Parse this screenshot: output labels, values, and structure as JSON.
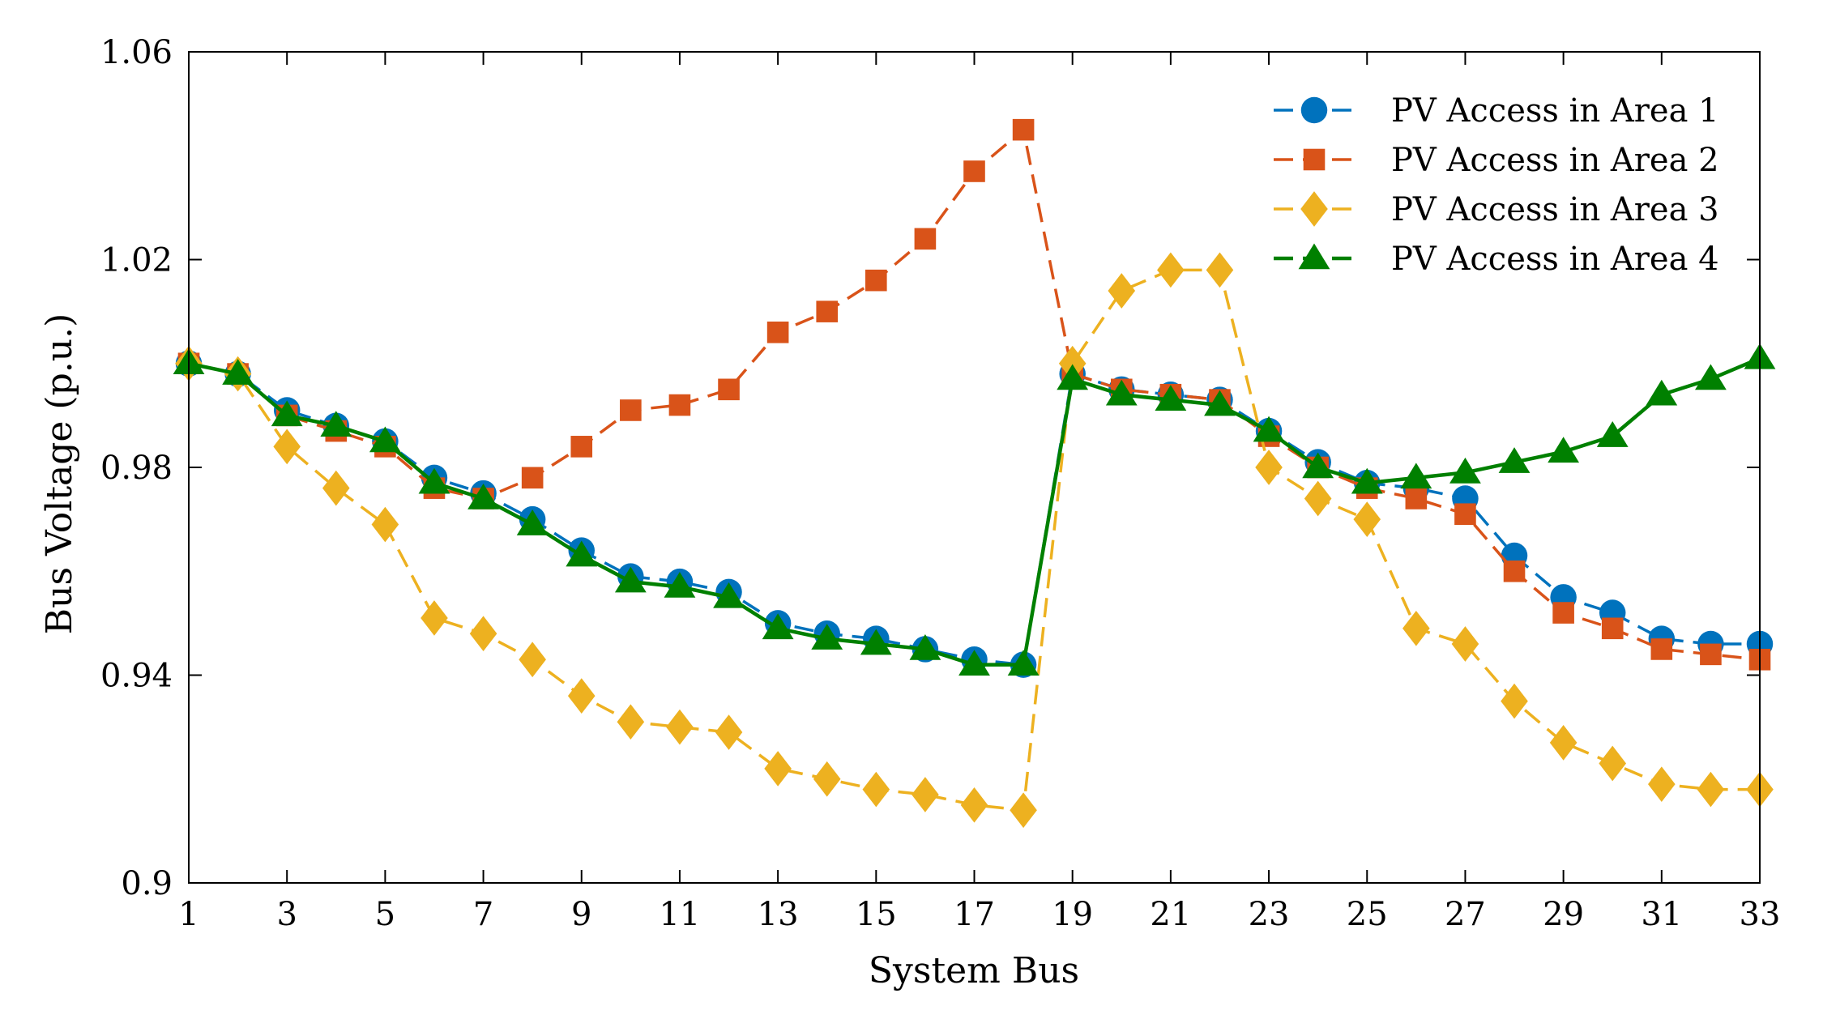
{
  "chart_data": {
    "type": "line",
    "title": "",
    "xlabel": "System Bus",
    "ylabel": "Bus Voltage (p.u.)",
    "xlim": [
      1,
      33
    ],
    "ylim": [
      0.9,
      1.06
    ],
    "x_ticks": [
      1,
      3,
      5,
      7,
      9,
      11,
      13,
      15,
      17,
      19,
      21,
      23,
      25,
      27,
      29,
      31,
      33
    ],
    "y_ticks": [
      0.9,
      0.94,
      0.98,
      1.02,
      1.06
    ],
    "y_tick_labels": [
      "0.9",
      "0.94",
      "0.98",
      "1.02",
      "1.06"
    ],
    "grid": false,
    "legend_position": "top-right",
    "x": [
      1,
      2,
      3,
      4,
      5,
      6,
      7,
      8,
      9,
      10,
      11,
      12,
      13,
      14,
      15,
      16,
      17,
      18,
      19,
      20,
      21,
      22,
      23,
      24,
      25,
      26,
      27,
      28,
      29,
      30,
      31,
      32,
      33
    ],
    "series": [
      {
        "name": "PV Access in Area 1",
        "color": "#0072BD",
        "marker": "circle",
        "line_style": "dashed",
        "values": [
          1.0,
          0.998,
          0.991,
          0.988,
          0.985,
          0.978,
          0.975,
          0.97,
          0.964,
          0.959,
          0.958,
          0.956,
          0.95,
          0.948,
          0.947,
          0.945,
          0.943,
          0.942,
          0.998,
          0.995,
          0.994,
          0.993,
          0.987,
          0.981,
          0.977,
          0.976,
          0.974,
          0.963,
          0.955,
          0.952,
          0.947,
          0.946,
          0.946
        ]
      },
      {
        "name": "PV Access in Area 2",
        "color": "#D95319",
        "marker": "square",
        "line_style": "dashed",
        "values": [
          1.0,
          0.998,
          0.99,
          0.987,
          0.984,
          0.976,
          0.974,
          0.978,
          0.984,
          0.991,
          0.992,
          0.995,
          1.006,
          1.01,
          1.016,
          1.024,
          1.037,
          1.045,
          0.998,
          0.995,
          0.994,
          0.993,
          0.986,
          0.98,
          0.976,
          0.974,
          0.971,
          0.96,
          0.952,
          0.949,
          0.945,
          0.944,
          0.943
        ]
      },
      {
        "name": "PV Access in Area 3",
        "color": "#EDB120",
        "marker": "diamond",
        "line_style": "dashed",
        "values": [
          1.0,
          0.998,
          0.984,
          0.976,
          0.969,
          0.951,
          0.948,
          0.943,
          0.936,
          0.931,
          0.93,
          0.929,
          0.922,
          0.92,
          0.918,
          0.917,
          0.915,
          0.914,
          1.0,
          1.014,
          1.018,
          1.018,
          0.98,
          0.974,
          0.97,
          0.949,
          0.946,
          0.935,
          0.927,
          0.923,
          0.919,
          0.918,
          0.918
        ]
      },
      {
        "name": "PV Access in Area 4",
        "color": "#008000",
        "marker": "triangle",
        "line_style": "solid",
        "values": [
          1.0,
          0.998,
          0.99,
          0.988,
          0.985,
          0.977,
          0.974,
          0.969,
          0.963,
          0.958,
          0.957,
          0.955,
          0.949,
          0.947,
          0.946,
          0.945,
          0.942,
          0.942,
          0.997,
          0.994,
          0.993,
          0.992,
          0.987,
          0.98,
          0.977,
          0.978,
          0.979,
          0.981,
          0.983,
          0.986,
          0.994,
          0.997,
          1.001
        ]
      }
    ]
  }
}
